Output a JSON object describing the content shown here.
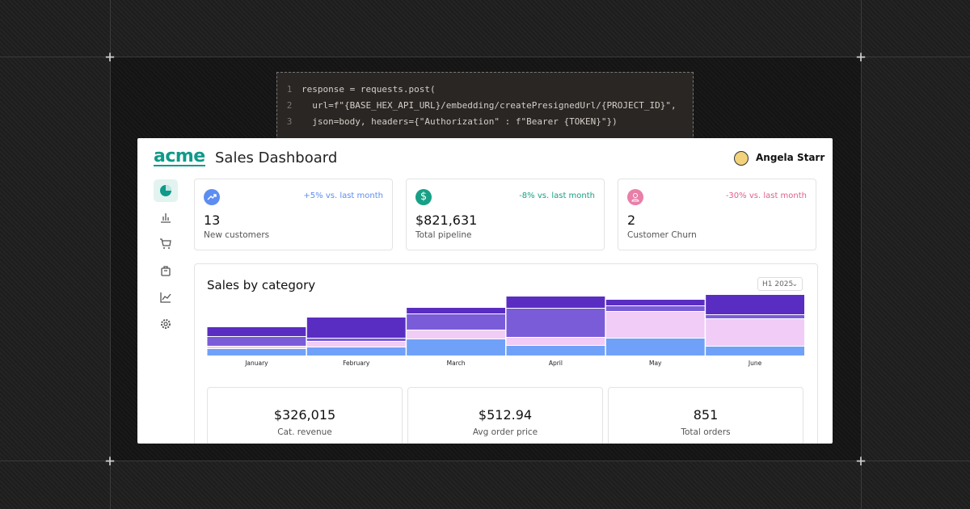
{
  "code": {
    "lines": [
      {
        "number": "1",
        "text": "response = requests.post("
      },
      {
        "number": "2",
        "text": "  url=f\"{BASE_HEX_API_URL}/embedding/createPresignedUrl/{PROJECT_ID}\","
      },
      {
        "number": "3",
        "text": "  json=body, headers={\"Authorization\" : f\"Bearer {TOKEN}\"})"
      }
    ]
  },
  "header": {
    "logo": "acme",
    "title": "Sales Dashboard",
    "user": "Angela Starr"
  },
  "kpis": [
    {
      "change": "+5% vs. last month",
      "value": "13",
      "label": "New customers"
    },
    {
      "change": "-8% vs. last month",
      "value": "$821,631",
      "label": "Total pipeline"
    },
    {
      "change": "-30% vs. last month",
      "value": "2",
      "label": "Customer Churn"
    }
  ],
  "filter": {
    "period": "H1 2025"
  },
  "chart_data": {
    "type": "bar",
    "stacked": true,
    "title": "Sales by category",
    "categories": [
      "January",
      "February",
      "March",
      "April",
      "May",
      "June"
    ],
    "series": [
      {
        "color": "#6fa1f8",
        "values": [
          9,
          11,
          21,
          13,
          22,
          12
        ]
      },
      {
        "color": "#f0ccf7",
        "values": [
          3,
          7,
          11,
          10,
          33,
          34
        ]
      },
      {
        "color": "#7a5cd9",
        "values": [
          12,
          4,
          20,
          36,
          7,
          5
        ]
      },
      {
        "color": "#5a2dc2",
        "values": [
          12,
          26,
          8,
          15,
          8,
          26
        ]
      }
    ],
    "ylim": [
      0,
      80
    ]
  },
  "stats": [
    {
      "value": "$326,015",
      "label": "Cat. revenue"
    },
    {
      "value": "$512.94",
      "label": "Avg order price"
    },
    {
      "value": "851",
      "label": "Total orders"
    }
  ]
}
